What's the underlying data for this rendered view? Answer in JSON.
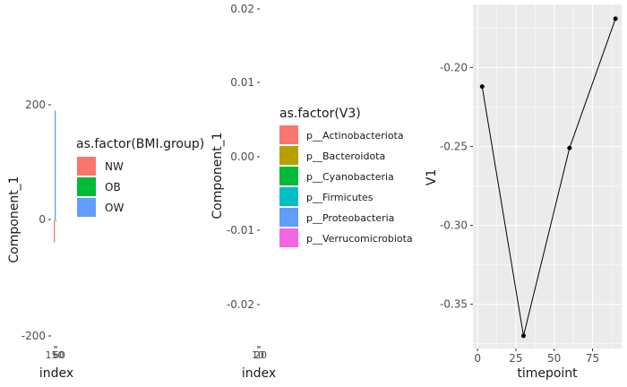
{
  "chart_data": [
    {
      "type": "bar",
      "xlabel": "index",
      "ylabel": "Component_1",
      "ylim": [
        -200,
        200
      ],
      "yticks": [
        "200",
        "0",
        "-200"
      ],
      "xtick_text": "150",
      "xtick_text_overlap": "60",
      "legend_position": "right",
      "legend": {
        "title": "as.factor(BMI.group)",
        "entries": [
          "NW",
          "OB",
          "OW"
        ],
        "colors": [
          "#F8766D",
          "#00BA38",
          "#619CFF"
        ]
      },
      "series": [
        {
          "group": "NW",
          "values": [
            -38
          ]
        },
        {
          "group": "OB",
          "values": [
            0
          ]
        },
        {
          "group": "OW",
          "values": [
            190
          ]
        }
      ]
    },
    {
      "type": "bar",
      "xlabel": "index",
      "ylabel": "Component_1",
      "ylim": [
        -0.025,
        0.02
      ],
      "yticks": [
        "0.02",
        "0.01",
        "0.00",
        "-0.01",
        "-0.02"
      ],
      "xtick_text": "10",
      "xtick_text_overlap": "20",
      "legend_position": "right",
      "legend": {
        "title": "as.factor(V3)",
        "entries": [
          "p__Actinobacteriota",
          "p__Bacteroidota",
          "p__Cyanobacteria",
          "p__Firmicutes",
          "p__Proteobacteria",
          "p__Verrucomicrobiota"
        ],
        "colors": [
          "#F8766D",
          "#B79F00",
          "#00BA38",
          "#00BFC4",
          "#619CFF",
          "#F564E3"
        ]
      }
    },
    {
      "type": "line",
      "xlabel": "timepoint",
      "ylabel": "V1",
      "grid": true,
      "xlim": [
        -3,
        94
      ],
      "ylim": [
        -0.378,
        -0.16
      ],
      "xticks": [
        0,
        25,
        50,
        75
      ],
      "xtick_labels": [
        "0",
        "25",
        "50",
        "75"
      ],
      "yticks": [
        -0.35,
        -0.3,
        -0.25,
        -0.2
      ],
      "ytick_labels": [
        "-0.35",
        "-0.30",
        "-0.25",
        "-0.20"
      ],
      "x": [
        3,
        30,
        60,
        90
      ],
      "y": [
        -0.212,
        -0.37,
        -0.251,
        -0.169
      ]
    }
  ]
}
